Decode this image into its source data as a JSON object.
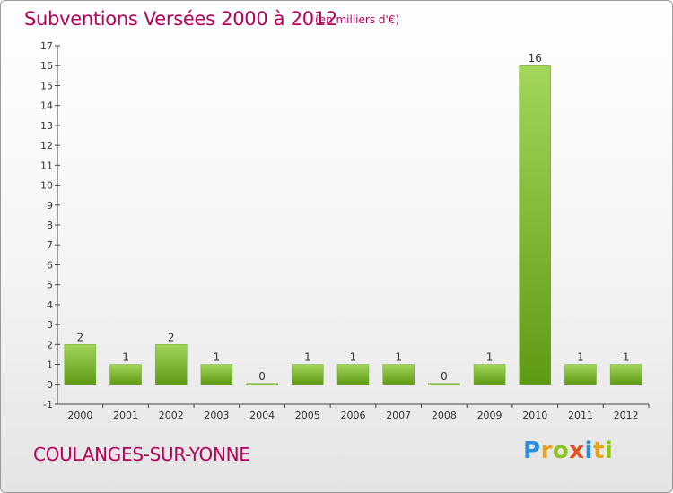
{
  "header": {
    "title": "Subventions Versées 2000 à 2012",
    "subtitle": "(en milliers d'€)"
  },
  "footer": {
    "commune": "COULANGES-SUR-YONNE",
    "logo": {
      "letters": [
        "P",
        "r",
        "o",
        "x",
        "i",
        "t",
        "i"
      ],
      "colors": [
        "#2a8fd8",
        "#e8a21c",
        "#8ec31f",
        "#e8501c",
        "#2a8fd8",
        "#e8a21c",
        "#8ec31f"
      ]
    }
  },
  "chart_data": {
    "type": "bar",
    "categories": [
      "2000",
      "2001",
      "2002",
      "2003",
      "2004",
      "2005",
      "2006",
      "2007",
      "2008",
      "2009",
      "2010",
      "2011",
      "2012"
    ],
    "values": [
      2,
      1,
      2,
      1,
      0,
      1,
      1,
      1,
      0,
      1,
      16,
      1,
      1
    ],
    "data_labels": [
      "2",
      "1",
      "2",
      "1",
      "0",
      "1",
      "1",
      "1",
      "0",
      "1",
      "16",
      "1",
      "1"
    ],
    "ylim": [
      -1,
      17
    ],
    "yticks": [
      -1,
      0,
      1,
      2,
      3,
      4,
      5,
      6,
      7,
      8,
      9,
      10,
      11,
      12,
      13,
      14,
      15,
      16,
      17
    ],
    "grid": false,
    "bar_color_top": "#a3d65a",
    "bar_color_bottom": "#5f9a14"
  }
}
